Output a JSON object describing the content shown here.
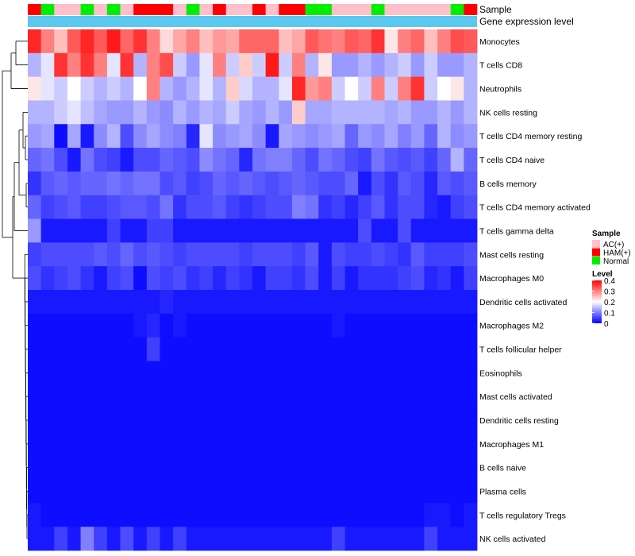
{
  "chart_data": {
    "type": "heatmap",
    "annotation_labels": {
      "sample": "Sample",
      "gene_expression": "Gene expression level"
    },
    "rows": [
      "Monocytes",
      "T cells CD8",
      "Neutrophils",
      "NK cells resting",
      "T cells CD4 memory resting",
      "T cells CD4 naive",
      "B cells memory",
      "T cells CD4 memory activated",
      "T cells gamma delta",
      "Mast cells resting",
      "Macrophages M0",
      "Dendritic cells activated",
      "Macrophages M2",
      "T cells follicular helper",
      "Eosinophils",
      "Mast cells activated",
      "Dendritic cells resting",
      "Macrophages M1",
      "B cells naive",
      "Plasma cells",
      "T cells regulatory  Tregs",
      "NK cells activated"
    ],
    "sample_groups": [
      "HAM(+)",
      "Normal",
      "AC(+)",
      "AC(+)",
      "Normal",
      "AC(+)",
      "Normal",
      "AC(+)",
      "HAM(+)",
      "HAM(+)",
      "HAM(+)",
      "AC(+)",
      "Normal",
      "AC(+)",
      "HAM(+)",
      "AC(+)",
      "AC(+)",
      "HAM(+)",
      "AC(+)",
      "HAM(+)",
      "HAM(+)",
      "Normal",
      "Normal",
      "AC(+)",
      "AC(+)",
      "AC(+)",
      "Normal",
      "AC(+)",
      "AC(+)",
      "AC(+)",
      "AC(+)",
      "AC(+)",
      "Normal",
      "HAM(+)"
    ],
    "legend": {
      "sample_title": "Sample",
      "sample_items": [
        {
          "label": "AC(+)",
          "color": "#ffc0cb"
        },
        {
          "label": "HAM(+)",
          "color": "#ff0000"
        },
        {
          "label": "Normal",
          "color": "#00ee00"
        }
      ],
      "level_title": "Level",
      "level_ticks": [
        "0.4",
        "0.3",
        "0.2",
        "0.1",
        "0"
      ],
      "level_range": [
        0,
        0.4
      ]
    },
    "colors": {
      "low": "#0000ff",
      "mid": "#ffffff",
      "high": "#ff0000",
      "gene_expression": "#5bc8f0"
    },
    "values": [
      [
        0.37,
        0.3,
        0.25,
        0.33,
        0.37,
        0.33,
        0.38,
        0.32,
        0.36,
        0.3,
        0.23,
        0.27,
        0.3,
        0.25,
        0.28,
        0.27,
        0.32,
        0.32,
        0.32,
        0.25,
        0.27,
        0.33,
        0.31,
        0.3,
        0.33,
        0.32,
        0.36,
        0.22,
        0.3,
        0.32,
        0.25,
        0.3,
        0.34,
        0.33
      ],
      [
        0.14,
        0.18,
        0.36,
        0.3,
        0.36,
        0.3,
        0.18,
        0.36,
        0.14,
        0.3,
        0.34,
        0.16,
        0.12,
        0.18,
        0.3,
        0.16,
        0.24,
        0.16,
        0.38,
        0.16,
        0.3,
        0.14,
        0.22,
        0.12,
        0.12,
        0.14,
        0.12,
        0.14,
        0.16,
        0.12,
        0.16,
        0.12,
        0.12,
        0.14
      ],
      [
        0.22,
        0.18,
        0.16,
        0.2,
        0.16,
        0.14,
        0.16,
        0.14,
        0.2,
        0.3,
        0.14,
        0.12,
        0.14,
        0.18,
        0.14,
        0.24,
        0.17,
        0.14,
        0.14,
        0.18,
        0.37,
        0.28,
        0.3,
        0.16,
        0.2,
        0.16,
        0.3,
        0.16,
        0.3,
        0.36,
        0.16,
        0.2,
        0.22,
        0.14
      ],
      [
        0.14,
        0.14,
        0.16,
        0.18,
        0.15,
        0.13,
        0.12,
        0.12,
        0.14,
        0.12,
        0.11,
        0.14,
        0.12,
        0.14,
        0.13,
        0.16,
        0.13,
        0.12,
        0.14,
        0.12,
        0.24,
        0.13,
        0.13,
        0.14,
        0.14,
        0.14,
        0.14,
        0.13,
        0.14,
        0.12,
        0.12,
        0.14,
        0.12,
        0.14
      ],
      [
        0.12,
        0.13,
        0.01,
        0.13,
        0.02,
        0.11,
        0.14,
        0.06,
        0.11,
        0.13,
        0.11,
        0.1,
        0.03,
        0.18,
        0.11,
        0.12,
        0.13,
        0.11,
        0.02,
        0.13,
        0.12,
        0.11,
        0.12,
        0.13,
        0.08,
        0.12,
        0.11,
        0.13,
        0.1,
        0.12,
        0.08,
        0.14,
        0.11,
        0.12
      ],
      [
        0.08,
        0.09,
        0.06,
        0.02,
        0.09,
        0.06,
        0.05,
        0.02,
        0.06,
        0.06,
        0.08,
        0.07,
        0.06,
        0.11,
        0.09,
        0.08,
        0.03,
        0.09,
        0.1,
        0.1,
        0.08,
        0.06,
        0.09,
        0.08,
        0.06,
        0.05,
        0.09,
        0.07,
        0.06,
        0.07,
        0.05,
        0.08,
        0.14,
        0.08
      ],
      [
        0.04,
        0.07,
        0.08,
        0.07,
        0.08,
        0.08,
        0.09,
        0.08,
        0.09,
        0.09,
        0.06,
        0.07,
        0.05,
        0.06,
        0.08,
        0.07,
        0.08,
        0.07,
        0.06,
        0.07,
        0.08,
        0.07,
        0.06,
        0.06,
        0.08,
        0.02,
        0.06,
        0.04,
        0.07,
        0.06,
        0.03,
        0.07,
        0.06,
        0.07
      ],
      [
        0.08,
        0.05,
        0.06,
        0.07,
        0.05,
        0.05,
        0.06,
        0.07,
        0.07,
        0.06,
        0.09,
        0.04,
        0.06,
        0.06,
        0.07,
        0.05,
        0.04,
        0.05,
        0.06,
        0.06,
        0.1,
        0.09,
        0.04,
        0.05,
        0.03,
        0.05,
        0.07,
        0.04,
        0.06,
        0.06,
        0.03,
        0.02,
        0.05,
        0.06
      ],
      [
        0.12,
        0.02,
        0.02,
        0.02,
        0.02,
        0.02,
        0.05,
        0.02,
        0.02,
        0.05,
        0.05,
        0.02,
        0.02,
        0.02,
        0.02,
        0.02,
        0.02,
        0.02,
        0.02,
        0.02,
        0.02,
        0.02,
        0.02,
        0.02,
        0.02,
        0.06,
        0.02,
        0.02,
        0.06,
        0.02,
        0.02,
        0.02,
        0.02,
        0.02
      ],
      [
        0.05,
        0.06,
        0.06,
        0.06,
        0.06,
        0.07,
        0.06,
        0.08,
        0.06,
        0.07,
        0.06,
        0.05,
        0.06,
        0.06,
        0.06,
        0.06,
        0.05,
        0.06,
        0.06,
        0.06,
        0.05,
        0.07,
        0.02,
        0.06,
        0.05,
        0.05,
        0.06,
        0.05,
        0.04,
        0.07,
        0.05,
        0.05,
        0.05,
        0.06
      ],
      [
        0.06,
        0.04,
        0.05,
        0.06,
        0.04,
        0.02,
        0.05,
        0.06,
        0.01,
        0.06,
        0.05,
        0.06,
        0.04,
        0.05,
        0.03,
        0.05,
        0.04,
        0.02,
        0.05,
        0.05,
        0.04,
        0.06,
        0.02,
        0.05,
        0.02,
        0.04,
        0.04,
        0.04,
        0.05,
        0.06,
        0.03,
        0.04,
        0.02,
        0.05
      ],
      [
        0.02,
        0.02,
        0.02,
        0.02,
        0.02,
        0.02,
        0.02,
        0.02,
        0.02,
        0.02,
        0.03,
        0.02,
        0.02,
        0.02,
        0.02,
        0.02,
        0.02,
        0.02,
        0.02,
        0.02,
        0.02,
        0.02,
        0.02,
        0.02,
        0.02,
        0.02,
        0.02,
        0.02,
        0.02,
        0.02,
        0.02,
        0.02,
        0.02,
        0.02
      ],
      [
        0.01,
        0.01,
        0.01,
        0.01,
        0.01,
        0.01,
        0.01,
        0.01,
        0.02,
        0.03,
        0.01,
        0.02,
        0.01,
        0.01,
        0.01,
        0.01,
        0.01,
        0.01,
        0.01,
        0.01,
        0.01,
        0.01,
        0.01,
        0.02,
        0.01,
        0.01,
        0.01,
        0.01,
        0.01,
        0.01,
        0.01,
        0.01,
        0.01,
        0.01
      ],
      [
        0.01,
        0.01,
        0.01,
        0.01,
        0.01,
        0.01,
        0.01,
        0.01,
        0.01,
        0.05,
        0.01,
        0.01,
        0.01,
        0.01,
        0.01,
        0.01,
        0.01,
        0.01,
        0.01,
        0.01,
        0.01,
        0.01,
        0.01,
        0.01,
        0.01,
        0.01,
        0.01,
        0.01,
        0.01,
        0.01,
        0.01,
        0.01,
        0.01,
        0.01
      ],
      [
        0.01,
        0.01,
        0.01,
        0.01,
        0.01,
        0.01,
        0.01,
        0.01,
        0.01,
        0.01,
        0.01,
        0.01,
        0.01,
        0.01,
        0.01,
        0.01,
        0.01,
        0.01,
        0.01,
        0.01,
        0.01,
        0.01,
        0.01,
        0.01,
        0.01,
        0.01,
        0.01,
        0.01,
        0.01,
        0.01,
        0.01,
        0.01,
        0.01,
        0.01
      ],
      [
        0.01,
        0.01,
        0.01,
        0.01,
        0.01,
        0.01,
        0.01,
        0.01,
        0.01,
        0.01,
        0.01,
        0.01,
        0.01,
        0.01,
        0.01,
        0.01,
        0.01,
        0.01,
        0.01,
        0.01,
        0.01,
        0.01,
        0.01,
        0.01,
        0.01,
        0.01,
        0.01,
        0.01,
        0.01,
        0.01,
        0.01,
        0.01,
        0.01,
        0.01
      ],
      [
        0.01,
        0.01,
        0.01,
        0.01,
        0.01,
        0.01,
        0.01,
        0.01,
        0.01,
        0.01,
        0.01,
        0.01,
        0.01,
        0.01,
        0.01,
        0.01,
        0.01,
        0.01,
        0.01,
        0.01,
        0.01,
        0.01,
        0.01,
        0.01,
        0.01,
        0.01,
        0.01,
        0.01,
        0.01,
        0.01,
        0.01,
        0.01,
        0.01,
        0.01
      ],
      [
        0.01,
        0.01,
        0.01,
        0.01,
        0.01,
        0.01,
        0.01,
        0.01,
        0.01,
        0.01,
        0.01,
        0.01,
        0.01,
        0.01,
        0.01,
        0.01,
        0.01,
        0.01,
        0.01,
        0.01,
        0.01,
        0.01,
        0.01,
        0.01,
        0.01,
        0.01,
        0.01,
        0.01,
        0.01,
        0.01,
        0.01,
        0.01,
        0.01,
        0.01
      ],
      [
        0.01,
        0.01,
        0.01,
        0.01,
        0.01,
        0.01,
        0.01,
        0.01,
        0.01,
        0.01,
        0.01,
        0.01,
        0.01,
        0.01,
        0.01,
        0.01,
        0.01,
        0.01,
        0.01,
        0.01,
        0.01,
        0.01,
        0.01,
        0.01,
        0.01,
        0.01,
        0.01,
        0.01,
        0.01,
        0.01,
        0.01,
        0.01,
        0.01,
        0.01
      ],
      [
        0.01,
        0.01,
        0.01,
        0.01,
        0.01,
        0.01,
        0.01,
        0.01,
        0.01,
        0.01,
        0.01,
        0.01,
        0.01,
        0.01,
        0.01,
        0.01,
        0.01,
        0.01,
        0.01,
        0.01,
        0.01,
        0.01,
        0.01,
        0.01,
        0.01,
        0.01,
        0.01,
        0.01,
        0.01,
        0.01,
        0.01,
        0.01,
        0.01,
        0.01
      ],
      [
        0.02,
        0.01,
        0.01,
        0.01,
        0.01,
        0.01,
        0.01,
        0.01,
        0.01,
        0.01,
        0.01,
        0.01,
        0.01,
        0.01,
        0.01,
        0.01,
        0.01,
        0.01,
        0.01,
        0.01,
        0.01,
        0.01,
        0.01,
        0.01,
        0.01,
        0.01,
        0.01,
        0.01,
        0.01,
        0.01,
        0.02,
        0.02,
        0.01,
        0.02
      ],
      [
        0.02,
        0.02,
        0.05,
        0.02,
        0.1,
        0.05,
        0.02,
        0.06,
        0.02,
        0.05,
        0.02,
        0.05,
        0.02,
        0.02,
        0.02,
        0.02,
        0.02,
        0.02,
        0.02,
        0.02,
        0.02,
        0.02,
        0.02,
        0.05,
        0.02,
        0.02,
        0.02,
        0.02,
        0.02,
        0.02,
        0.05,
        0.02,
        0.02,
        0.02
      ]
    ]
  }
}
